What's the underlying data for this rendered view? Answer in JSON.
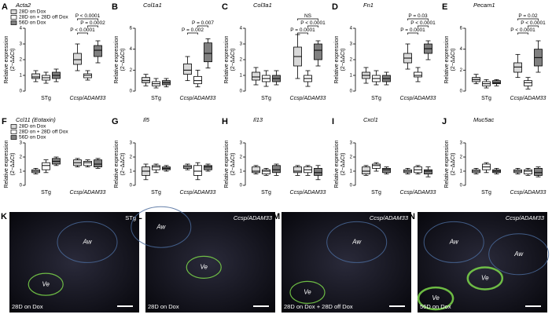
{
  "chart_data": [
    {
      "type": "box",
      "label": "A",
      "title": "Acta2",
      "ylabel": "Relative expression",
      "ylabel2": "(2−ΔΔCt)",
      "groups": [
        "STg",
        "Ccsp/ADAM33"
      ],
      "ylim": [
        0,
        4
      ],
      "yticks": [
        0,
        1,
        2,
        3,
        4
      ],
      "legend": "upper left",
      "series": [
        {
          "name": "28D on Dox",
          "color": "#d9d9d9",
          "boxes": [
            [
              0.6,
              0.8,
              0.9,
              1.1,
              1.3
            ],
            [
              1.3,
              1.7,
              2.0,
              2.4,
              3.0
            ]
          ]
        },
        {
          "name": "28D on + 28D off Dox",
          "color": "#ffffff",
          "boxes": [
            [
              0.5,
              0.7,
              0.85,
              1.0,
              1.2
            ],
            [
              0.7,
              0.85,
              1.0,
              1.1,
              1.3
            ]
          ]
        },
        {
          "name": "56D on Dox",
          "color": "#808080",
          "boxes": [
            [
              0.6,
              0.8,
              1.0,
              1.2,
              1.4
            ],
            [
              1.8,
              2.2,
              2.6,
              2.9,
              3.2
            ]
          ]
        }
      ],
      "annotations": [
        "P < 0.0001",
        "P = 0.0002",
        "P < 0.0001"
      ]
    },
    {
      "type": "box",
      "label": "B",
      "title": "Col1a1",
      "ylabel": "Relative expression",
      "ylabel2": "(2−ΔΔCt)",
      "groups": [
        "STg",
        "Ccsp/ADAM33"
      ],
      "ylim": [
        0,
        6
      ],
      "yticks": [
        0,
        2,
        4,
        6
      ],
      "series": [
        {
          "name": "28D on Dox",
          "color": "#d9d9d9",
          "boxes": [
            [
              0.5,
              0.8,
              1.0,
              1.3,
              1.6
            ],
            [
              1.0,
              1.6,
              2.0,
              2.6,
              3.3
            ]
          ]
        },
        {
          "name": "28D on + 28D off Dox",
          "color": "#ffffff",
          "boxes": [
            [
              0.3,
              0.5,
              0.7,
              0.9,
              1.2
            ],
            [
              0.4,
              0.7,
              1.0,
              1.4,
              2.0
            ]
          ]
        },
        {
          "name": "56D on Dox",
          "color": "#808080",
          "boxes": [
            [
              0.4,
              0.6,
              0.8,
              1.0,
              1.2
            ],
            [
              2.2,
              2.8,
              3.6,
              4.6,
              5.0
            ]
          ]
        }
      ],
      "annotations": [
        "P = 0.002",
        "P = 0.007"
      ]
    },
    {
      "type": "box",
      "label": "C",
      "title": "Col3a1",
      "ylabel": "Relative expression",
      "ylabel2": "(2−ΔΔCt)",
      "groups": [
        "STg",
        "Ccsp/ADAM33"
      ],
      "ylim": [
        0,
        4
      ],
      "yticks": [
        0,
        1,
        2,
        3,
        4
      ],
      "series": [
        {
          "name": "28D on Dox",
          "color": "#d9d9d9",
          "boxes": [
            [
              0.4,
              0.7,
              0.9,
              1.2,
              1.5
            ],
            [
              0.8,
              1.6,
              2.2,
              2.8,
              3.6
            ]
          ]
        },
        {
          "name": "28D on + 28D off Dox",
          "color": "#ffffff",
          "boxes": [
            [
              0.3,
              0.6,
              0.8,
              1.0,
              1.3
            ],
            [
              0.3,
              0.6,
              0.8,
              1.0,
              1.3
            ]
          ]
        },
        {
          "name": "56D on Dox",
          "color": "#808080",
          "boxes": [
            [
              0.4,
              0.6,
              0.8,
              1.0,
              1.3
            ],
            [
              1.6,
              2.0,
              2.6,
              3.0,
              3.2
            ]
          ]
        }
      ],
      "annotations": [
        "P = 0.0001",
        "P < 0.0001",
        "NS"
      ]
    },
    {
      "type": "box",
      "label": "D",
      "title": "Fn1",
      "ylabel": "Relative expression",
      "ylabel2": "(2−ΔΔCt)",
      "groups": [
        "STg",
        "Ccsp/ADAM33"
      ],
      "ylim": [
        0,
        4
      ],
      "yticks": [
        0,
        1,
        2,
        3,
        4
      ],
      "series": [
        {
          "name": "28D on Dox",
          "color": "#d9d9d9",
          "boxes": [
            [
              0.5,
              0.8,
              1.0,
              1.2,
              1.5
            ],
            [
              1.4,
              1.8,
              2.1,
              2.4,
              3.0
            ]
          ]
        },
        {
          "name": "28D on + 28D off Dox",
          "color": "#ffffff",
          "boxes": [
            [
              0.4,
              0.6,
              0.8,
              1.0,
              1.3
            ],
            [
              0.6,
              0.9,
              1.0,
              1.2,
              1.5
            ]
          ]
        },
        {
          "name": "56D on Dox",
          "color": "#808080",
          "boxes": [
            [
              0.4,
              0.6,
              0.8,
              1.0,
              1.2
            ],
            [
              2.0,
              2.4,
              2.7,
              3.0,
              3.2
            ]
          ]
        }
      ],
      "annotations": [
        "P = 0.0001",
        "P < 0.0001",
        "P = 0.03"
      ]
    },
    {
      "type": "box",
      "label": "E",
      "title": "Pecam1",
      "ylabel": "Relative expression",
      "ylabel2": "(2−ΔΔCt)",
      "groups": [
        "STg",
        "Ccsp/ADAM33"
      ],
      "ylim": [
        0,
        6
      ],
      "yticks": [
        0,
        2,
        4,
        6
      ],
      "series": [
        {
          "name": "28D on Dox",
          "color": "#d9d9d9",
          "boxes": [
            [
              0.7,
              0.9,
              1.1,
              1.3,
              1.6
            ],
            [
              1.3,
              1.8,
              2.3,
              2.7,
              3.5
            ]
          ]
        },
        {
          "name": "28D on + 28D off Dox",
          "color": "#ffffff",
          "boxes": [
            [
              0.3,
              0.5,
              0.7,
              0.9,
              1.1
            ],
            [
              0.2,
              0.5,
              0.8,
              1.0,
              1.3
            ]
          ]
        },
        {
          "name": "56D on Dox",
          "color": "#808080",
          "boxes": [
            [
              0.5,
              0.7,
              0.8,
              1.0,
              1.1
            ],
            [
              1.8,
              2.4,
              3.2,
              4.0,
              4.8
            ]
          ]
        }
      ],
      "annotations": [
        "P < 0.0001",
        "P < 0.0001",
        "P = 0.02"
      ]
    },
    {
      "type": "box",
      "label": "F",
      "title": "Ccl11 (Eotaxin)",
      "ylabel": "Relative expression",
      "ylabel2": "(2−ΔΔCt)",
      "groups": [
        "STg",
        "Ccsp/ADAM33"
      ],
      "ylim": [
        0,
        3
      ],
      "yticks": [
        0,
        1,
        2,
        3
      ],
      "legend": "upper left",
      "series": [
        {
          "name": "28D on Dox",
          "color": "#d9d9d9",
          "boxes": [
            [
              0.8,
              0.9,
              1.0,
              1.1,
              1.2
            ],
            [
              1.3,
              1.4,
              1.6,
              1.8,
              1.9
            ]
          ]
        },
        {
          "name": "28D on + 28D off Dox",
          "color": "#ffffff",
          "boxes": [
            [
              0.9,
              1.1,
              1.4,
              1.6,
              1.8
            ],
            [
              1.3,
              1.4,
              1.6,
              1.7,
              1.8
            ]
          ]
        },
        {
          "name": "56D on Dox",
          "color": "#808080",
          "boxes": [
            [
              1.4,
              1.5,
              1.7,
              1.9,
              2.0
            ],
            [
              1.2,
              1.3,
              1.5,
              1.8,
              1.9
            ]
          ]
        }
      ]
    },
    {
      "type": "box",
      "label": "G",
      "title": "Il5",
      "ylabel": "Relative expression",
      "ylabel2": "(2−ΔΔCt)",
      "groups": [
        "STg",
        "Ccsp/ADAM33"
      ],
      "ylim": [
        0,
        3
      ],
      "yticks": [
        0,
        1,
        2,
        3
      ],
      "series": [
        {
          "name": "28D on Dox",
          "color": "#d9d9d9",
          "boxes": [
            [
              0.4,
              0.7,
              1.0,
              1.3,
              1.5
            ],
            [
              1.1,
              1.2,
              1.3,
              1.4,
              1.5
            ]
          ]
        },
        {
          "name": "28D on + 28D off Dox",
          "color": "#ffffff",
          "boxes": [
            [
              0.9,
              1.1,
              1.3,
              1.4,
              1.5
            ],
            [
              0.4,
              0.7,
              1.0,
              1.4,
              1.6
            ]
          ]
        },
        {
          "name": "56D on Dox",
          "color": "#808080",
          "boxes": [
            [
              1.0,
              1.1,
              1.2,
              1.3,
              1.4
            ],
            [
              1.0,
              1.1,
              1.3,
              1.4,
              1.5
            ]
          ]
        }
      ]
    },
    {
      "type": "box",
      "label": "H",
      "title": "Il13",
      "ylabel": "Relative expression",
      "ylabel2": "(2−ΔΔCt)",
      "groups": [
        "STg",
        "Ccsp/ADAM33"
      ],
      "ylim": [
        0,
        3
      ],
      "yticks": [
        0,
        1,
        2,
        3
      ],
      "series": [
        {
          "name": "28D on Dox",
          "color": "#d9d9d9",
          "boxes": [
            [
              0.8,
              0.9,
              1.0,
              1.3,
              1.4
            ],
            [
              0.7,
              0.9,
              1.0,
              1.3,
              1.4
            ]
          ]
        },
        {
          "name": "28D on + 28D off Dox",
          "color": "#ffffff",
          "boxes": [
            [
              0.7,
              0.8,
              1.0,
              1.1,
              1.2
            ],
            [
              0.7,
              0.9,
              1.1,
              1.3,
              1.4
            ]
          ]
        },
        {
          "name": "56D on Dox",
          "color": "#808080",
          "boxes": [
            [
              0.7,
              0.9,
              1.1,
              1.4,
              1.5
            ],
            [
              0.4,
              0.7,
              0.9,
              1.2,
              1.4
            ]
          ]
        }
      ]
    },
    {
      "type": "box",
      "label": "I",
      "title": "Cxcl1",
      "ylabel": "Relative expression",
      "ylabel2": "(2−ΔΔCt)",
      "groups": [
        "STg",
        "Ccsp/ADAM33"
      ],
      "ylim": [
        0,
        3
      ],
      "yticks": [
        0,
        1,
        2,
        3
      ],
      "series": [
        {
          "name": "28D on Dox",
          "color": "#d9d9d9",
          "boxes": [
            [
              0.7,
              0.8,
              1.0,
              1.3,
              1.4
            ],
            [
              0.8,
              0.9,
              1.0,
              1.1,
              1.2
            ]
          ]
        },
        {
          "name": "28D on + 28D off Dox",
          "color": "#ffffff",
          "boxes": [
            [
              1.0,
              1.2,
              1.4,
              1.5,
              1.6
            ],
            [
              0.8,
              0.9,
              1.1,
              1.3,
              1.4
            ]
          ]
        },
        {
          "name": "56D on Dox",
          "color": "#808080",
          "boxes": [
            [
              0.8,
              0.9,
              1.1,
              1.2,
              1.3
            ],
            [
              0.6,
              0.8,
              1.0,
              1.1,
              1.3
            ]
          ]
        }
      ]
    },
    {
      "type": "box",
      "label": "J",
      "title": "Muc5ac",
      "ylabel": "Relative expression",
      "ylabel2": "(2−ΔΔCt)",
      "groups": [
        "STg",
        "Ccsp/ADAM33"
      ],
      "ylim": [
        0,
        3
      ],
      "yticks": [
        0,
        1,
        2,
        3
      ],
      "series": [
        {
          "name": "28D on Dox",
          "color": "#d9d9d9",
          "boxes": [
            [
              0.8,
              0.9,
              1.0,
              1.1,
              1.2
            ],
            [
              0.8,
              0.9,
              1.0,
              1.1,
              1.2
            ]
          ]
        },
        {
          "name": "28D on + 28D off Dox",
          "color": "#ffffff",
          "boxes": [
            [
              0.9,
              1.1,
              1.3,
              1.5,
              1.6
            ],
            [
              0.7,
              0.8,
              1.0,
              1.1,
              1.2
            ]
          ]
        },
        {
          "name": "56D on Dox",
          "color": "#808080",
          "boxes": [
            [
              0.8,
              0.9,
              1.0,
              1.1,
              1.2
            ],
            [
              0.6,
              0.7,
              0.9,
              1.2,
              1.3
            ]
          ]
        }
      ]
    }
  ],
  "micrographs": [
    {
      "label": "K",
      "tag": "STg",
      "caption": "28D on Dox",
      "regions": [
        "Aw",
        "Ve"
      ]
    },
    {
      "label": "L",
      "tag": "Ccsp/ADAM33",
      "caption": "28D on Dox",
      "regions": [
        "Aw",
        "Ve"
      ]
    },
    {
      "label": "M",
      "tag": "Ccsp/ADAM33",
      "caption": "28D on Dox + 28D off Dox",
      "regions": [
        "Aw",
        "Ve"
      ]
    },
    {
      "label": "N",
      "tag": "Ccsp/ADAM33",
      "caption": "56D on Dox",
      "regions": [
        "Aw",
        "Aw",
        "Ve",
        "Ve"
      ]
    }
  ]
}
